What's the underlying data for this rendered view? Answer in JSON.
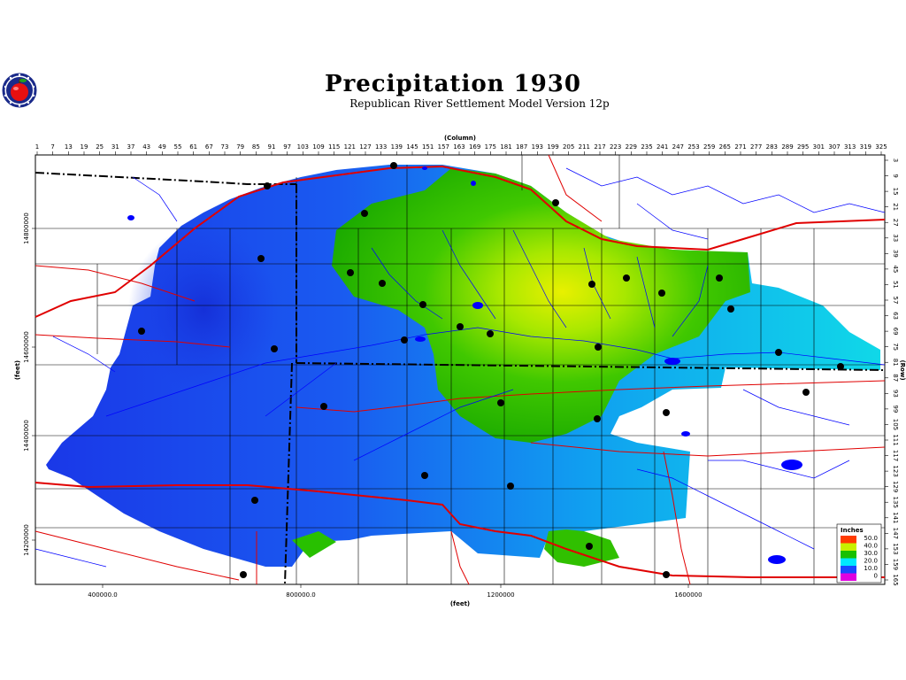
{
  "title": "Precipitation 1930",
  "subtitle": "Republican River Settlement Model Version 12p",
  "axes": {
    "top_label": "(Column)",
    "right_label": "(Row)",
    "left_label": "(feet)",
    "bottom_label": "(feet)",
    "column_ticks": [
      "1",
      "7",
      "13",
      "19",
      "25",
      "31",
      "37",
      "43",
      "49",
      "55",
      "61",
      "67",
      "73",
      "79",
      "85",
      "91",
      "97",
      "103",
      "109",
      "115",
      "121",
      "127",
      "133",
      "139",
      "145",
      "151",
      "157",
      "163",
      "169",
      "175",
      "181",
      "187",
      "193",
      "199",
      "205",
      "211",
      "217",
      "223",
      "229",
      "235",
      "241",
      "247",
      "253",
      "259",
      "265",
      "271",
      "277",
      "283",
      "289",
      "295",
      "301",
      "307",
      "313",
      "319",
      "325"
    ],
    "row_ticks": [
      "3",
      "9",
      "15",
      "21",
      "27",
      "33",
      "39",
      "45",
      "51",
      "57",
      "63",
      "69",
      "75",
      "81",
      "87",
      "93",
      "99",
      "105",
      "111",
      "117",
      "123",
      "129",
      "135",
      "141",
      "147",
      "153",
      "159",
      "165"
    ],
    "x_ticks": [
      "400000.0",
      "800000.0",
      "1200000",
      "1600000"
    ],
    "y_ticks": [
      "14800000",
      "14600000",
      "14400000",
      "14200000"
    ]
  },
  "legend": {
    "title": "Inches",
    "items": [
      {
        "label": "50.0",
        "color": "#ff3b00"
      },
      {
        "label": "40.0",
        "color": "#c8f000"
      },
      {
        "label": "30.0",
        "color": "#18c000"
      },
      {
        "label": "20.0",
        "color": "#00e8ff"
      },
      {
        "label": "10.0",
        "color": "#1848ff"
      },
      {
        "label": "0",
        "color": "#e000e0"
      }
    ]
  },
  "icons": {
    "logo": "apple-logo-icon"
  },
  "colors": {
    "low": "#1a3de0",
    "mid": "#12d8ea",
    "high": "#28b800",
    "peak": "#d8f000",
    "roads": "#e00000",
    "streams": "#0000ff"
  }
}
